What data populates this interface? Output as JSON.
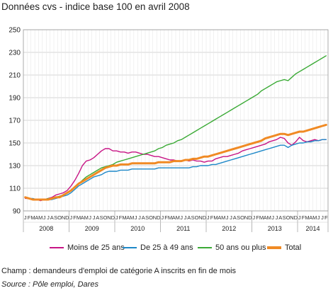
{
  "title": "Données cvs - indice base 100 en avril 2008",
  "chart_data": {
    "type": "line",
    "ylim": [
      90,
      250
    ],
    "yticks": [
      90,
      110,
      130,
      150,
      170,
      190,
      210,
      230,
      250
    ],
    "month_letters": [
      "J",
      "F",
      "M",
      "A",
      "M",
      "J",
      "J",
      "A",
      "S",
      "O",
      "N",
      "D"
    ],
    "years": [
      "2008",
      "2009",
      "2010",
      "2011",
      "2012",
      "2013",
      "2014"
    ],
    "last_month_letters": [
      "J",
      "F",
      "M",
      "A",
      "M",
      "J"
    ],
    "series": [
      {
        "name": "Moins de 25 ans",
        "color": "#c71585",
        "values": [
          101,
          101,
          100,
          100,
          99,
          100,
          101,
          102,
          104,
          105,
          106,
          108,
          112,
          117,
          123,
          130,
          134,
          135,
          137,
          140,
          143,
          145,
          145,
          143,
          143,
          142,
          142,
          141,
          142,
          142,
          141,
          140,
          140,
          139,
          138,
          138,
          137,
          136,
          135,
          135,
          134,
          134,
          135,
          134,
          135,
          134,
          134,
          133,
          134,
          134,
          136,
          137,
          138,
          138,
          139,
          140,
          141,
          143,
          144,
          145,
          146,
          147,
          148,
          149,
          151,
          152,
          153,
          155,
          154,
          150,
          148,
          151,
          155,
          152,
          151,
          152,
          153,
          152,
          153,
          153
        ]
      },
      {
        "name": "De 25 à 49 ans",
        "color": "#1e88c8",
        "values": [
          102,
          101,
          101,
          100,
          100,
          100,
          100,
          100,
          101,
          102,
          103,
          104,
          106,
          109,
          112,
          114,
          116,
          118,
          120,
          121,
          122,
          124,
          125,
          125,
          125,
          126,
          126,
          126,
          127,
          127,
          127,
          127,
          127,
          127,
          127,
          128,
          128,
          128,
          128,
          128,
          128,
          128,
          128,
          128,
          129,
          129,
          130,
          130,
          130,
          131,
          131,
          132,
          133,
          134,
          135,
          136,
          137,
          138,
          139,
          140,
          141,
          142,
          143,
          144,
          145,
          146,
          147,
          148,
          148,
          146,
          148,
          149,
          150,
          150,
          151,
          151,
          152,
          152,
          153,
          153
        ]
      },
      {
        "name": "50 ans ou plus",
        "color": "#3aaa35",
        "values": [
          102,
          101,
          100,
          100,
          100,
          100,
          101,
          101,
          102,
          103,
          104,
          106,
          108,
          111,
          114,
          117,
          120,
          122,
          124,
          126,
          128,
          129,
          130,
          131,
          133,
          134,
          135,
          136,
          137,
          138,
          139,
          140,
          141,
          142,
          143,
          145,
          146,
          148,
          149,
          150,
          152,
          153,
          155,
          157,
          159,
          161,
          163,
          165,
          167,
          169,
          171,
          173,
          175,
          177,
          179,
          181,
          183,
          185,
          187,
          189,
          191,
          193,
          196,
          198,
          200,
          202,
          204,
          205,
          206,
          205,
          208,
          211,
          213,
          215,
          217,
          219,
          221,
          223,
          225,
          227
        ]
      },
      {
        "name": "Total",
        "color": "#f08a24",
        "values": [
          102,
          101,
          100,
          100,
          100,
          100,
          100,
          101,
          102,
          102,
          104,
          106,
          108,
          111,
          114,
          116,
          118,
          120,
          122,
          124,
          126,
          128,
          129,
          130,
          130,
          131,
          131,
          131,
          132,
          132,
          132,
          132,
          132,
          132,
          132,
          133,
          133,
          133,
          133,
          134,
          134,
          134,
          135,
          135,
          136,
          136,
          137,
          138,
          138,
          139,
          140,
          141,
          142,
          143,
          144,
          145,
          146,
          147,
          148,
          149,
          150,
          151,
          152,
          154,
          155,
          156,
          157,
          158,
          158,
          157,
          158,
          159,
          160,
          160,
          161,
          162,
          163,
          164,
          165,
          166
        ]
      }
    ]
  },
  "note": "Champ : demandeurs d'emploi de catégorie A inscrits en fin de mois",
  "source": "Source : Pôle emploi, Dares"
}
